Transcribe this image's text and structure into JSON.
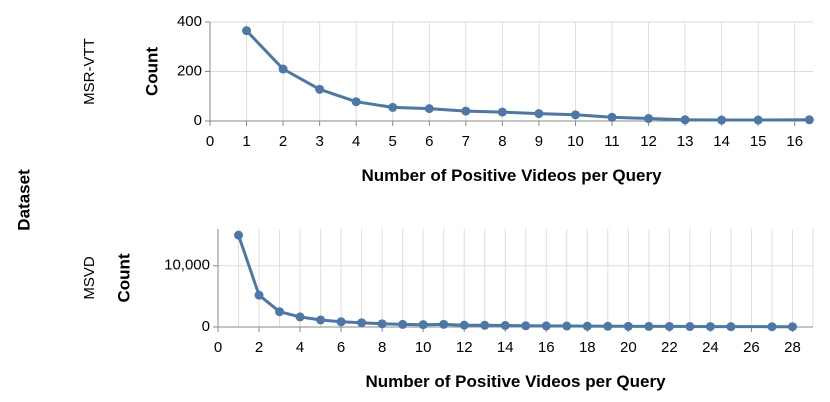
{
  "row_title": "Dataset",
  "chart_data": [
    {
      "type": "line",
      "facet": "MSR-VTT",
      "xlabel": "Number of Positive Videos per Query",
      "ylabel": "Count",
      "xlim": [
        0,
        16.5
      ],
      "ylim": [
        0,
        400
      ],
      "x_ticks": [
        0,
        1,
        2,
        3,
        4,
        5,
        6,
        7,
        8,
        9,
        10,
        11,
        12,
        13,
        14,
        15,
        16
      ],
      "y_ticks": [
        0,
        200,
        400
      ],
      "y_tick_labels": [
        "0",
        "200",
        "400"
      ],
      "grid": true,
      "color": "#4c78a8",
      "x": [
        1,
        2,
        3,
        4,
        5,
        6,
        7,
        8,
        9,
        10,
        11,
        12,
        13,
        14,
        15,
        16.4
      ],
      "y": [
        365,
        210,
        128,
        78,
        55,
        50,
        40,
        36,
        30,
        25,
        15,
        10,
        5,
        4,
        4,
        5
      ]
    },
    {
      "type": "line",
      "facet": "MSVD",
      "xlabel": "Number of Positive Videos per Query",
      "ylabel": "Count",
      "xlim": [
        0,
        29
      ],
      "ylim": [
        0,
        16000
      ],
      "x_ticks": [
        0,
        2,
        4,
        6,
        8,
        10,
        12,
        14,
        16,
        18,
        20,
        22,
        24,
        26,
        28
      ],
      "x_grid": [
        1,
        2,
        3,
        4,
        5,
        6,
        7,
        8,
        9,
        10,
        11,
        12,
        13,
        14,
        15,
        16,
        17,
        18,
        19,
        20,
        21,
        22,
        23,
        24,
        25,
        26,
        27,
        28,
        29
      ],
      "y_ticks": [
        0,
        10000
      ],
      "y_tick_labels": [
        "0",
        "10,000"
      ],
      "grid": true,
      "color": "#4c78a8",
      "x": [
        1,
        2,
        3,
        4,
        5,
        6,
        7,
        8,
        9,
        10,
        11,
        12,
        13,
        14,
        15,
        16,
        17,
        18,
        19,
        20,
        21,
        22,
        23,
        24,
        25,
        27,
        28
      ],
      "y": [
        15000,
        5200,
        2500,
        1650,
        1150,
        850,
        700,
        520,
        420,
        380,
        430,
        300,
        280,
        250,
        200,
        180,
        160,
        140,
        120,
        110,
        100,
        90,
        80,
        70,
        60,
        50,
        50
      ]
    }
  ]
}
